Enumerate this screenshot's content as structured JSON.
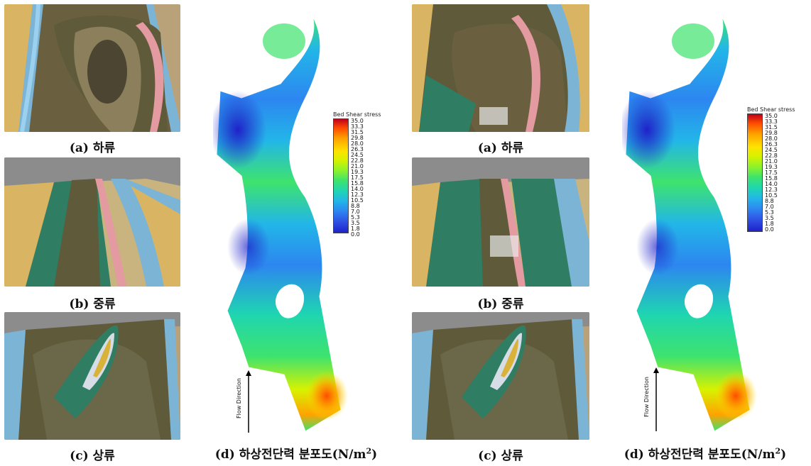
{
  "panels": [
    {
      "captions": {
        "a": "(a) 하류",
        "b": "(b) 중류",
        "c": "(c) 상류",
        "d_prefix": "(d) 하상전단력 분포도(N/m",
        "d_sup": "2",
        "d_suffix": ")"
      },
      "legend": {
        "title": "Bed Shear stress",
        "ticks": [
          "35.0",
          "33.3",
          "31.5",
          "29.8",
          "28.0",
          "26.3",
          "24.5",
          "22.8",
          "21.0",
          "19.3",
          "17.5",
          "15.8",
          "14.0",
          "12.3",
          "10.5",
          "8.8",
          "7.0",
          "5.3",
          "3.5",
          "1.8",
          "0.0"
        ]
      },
      "flow_label": "Flow Direction"
    },
    {
      "captions": {
        "a": "(a) 하류",
        "b": "(b) 중류",
        "c": "(c) 상류",
        "d_prefix": "(d) 하상전단력 분포도(N/m",
        "d_sup": "2",
        "d_suffix": ")"
      },
      "legend": {
        "title": "Bed Shear stress",
        "ticks": [
          "35.0",
          "33.3",
          "31.5",
          "29.8",
          "28.0",
          "26.3",
          "24.5",
          "22.8",
          "21.0",
          "19.3",
          "17.5",
          "15.8",
          "14.0",
          "12.3",
          "10.5",
          "8.8",
          "7.0",
          "5.3",
          "3.5",
          "1.8",
          "0.0"
        ]
      },
      "flow_label": "Flow Direction"
    }
  ],
  "colors": {
    "water": "#5e5a3a",
    "bank_blue": "#7cb4d6",
    "bank_yellow": "#d8b463",
    "bank_pink": "#e39aa0",
    "shear_low": "#1f22c8",
    "shear_mid": "#3ee36d",
    "shear_high": "#ff4d00"
  }
}
